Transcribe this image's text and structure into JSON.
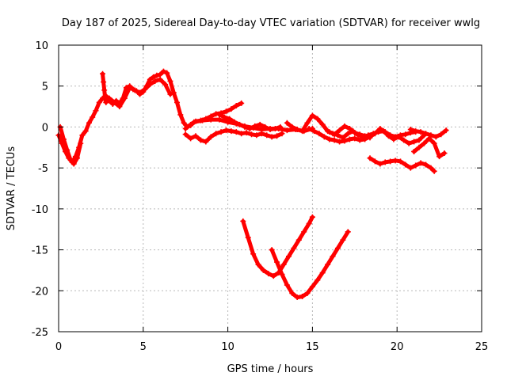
{
  "chart_data": {
    "type": "scatter",
    "title": "Day 187 of 2025, Sidereal Day-to-day VTEC variation (SDTVAR) for receiver wwlg",
    "xlabel": "GPS time / hours",
    "ylabel": "SDTVAR / TECUs",
    "xlim": [
      0,
      25
    ],
    "ylim": [
      -25,
      10
    ],
    "xticks": [
      0,
      5,
      10,
      15,
      20,
      25
    ],
    "yticks": [
      -25,
      -20,
      -15,
      -10,
      -5,
      0,
      5,
      10
    ],
    "grid": true,
    "legend": "none",
    "marker": "plus",
    "color": "#ff0000",
    "series": [
      {
        "x": [
          0.0,
          0.2,
          0.4,
          0.6,
          0.8,
          1.0,
          1.2,
          1.4,
          1.6,
          1.8,
          2.0,
          2.2,
          2.4,
          2.6,
          2.8,
          3.0,
          3.2,
          3.4,
          3.6,
          3.8,
          4.0,
          4.2,
          4.4,
          4.6,
          4.8,
          5.0,
          5.2,
          5.4,
          5.6,
          5.8,
          6.0,
          6.2,
          6.4,
          6.6,
          6.8,
          7.0,
          7.2,
          7.4,
          7.6,
          7.8,
          8.0,
          8.5,
          9.0,
          9.5,
          10.0,
          10.5,
          11.0,
          11.5,
          12.0,
          12.5,
          13.0,
          13.5,
          14.0,
          14.5,
          15.0
        ],
        "y": [
          -1.0,
          -2.0,
          -3.0,
          -3.8,
          -4.3,
          -3.6,
          -2.5,
          -1.0,
          -0.5,
          0.5,
          1.2,
          2.0,
          3.0,
          3.5,
          3.8,
          3.2,
          2.8,
          3.2,
          2.9,
          3.5,
          4.8,
          5.0,
          4.6,
          4.4,
          4.0,
          4.3,
          5.0,
          5.8,
          6.1,
          6.3,
          6.4,
          6.8,
          6.6,
          5.6,
          4.2,
          3.0,
          1.5,
          0.5,
          0.0,
          0.2,
          0.6,
          0.8,
          0.9,
          0.9,
          0.6,
          0.4,
          0.1,
          -0.1,
          -0.3,
          -0.2,
          -0.2,
          -0.4,
          -0.3,
          -0.5,
          -0.2
        ]
      },
      {
        "x": [
          2.6,
          2.65,
          2.7,
          2.75,
          2.8
        ],
        "y": [
          6.5,
          5.5,
          4.5,
          3.5,
          3.0
        ]
      },
      {
        "x": [
          0.1,
          0.3,
          0.5,
          0.7,
          0.9,
          1.1,
          1.3
        ],
        "y": [
          0.0,
          -1.5,
          -2.8,
          -4.0,
          -4.5,
          -3.8,
          -2.0
        ]
      },
      {
        "x": [
          3.0,
          3.3,
          3.6,
          3.9,
          4.2,
          4.5,
          4.8,
          5.1,
          5.4,
          5.7,
          6.0,
          6.3,
          6.6
        ],
        "y": [
          3.5,
          3.0,
          2.5,
          3.5,
          4.8,
          4.5,
          4.2,
          4.6,
          5.2,
          5.6,
          5.8,
          5.2,
          4.0
        ]
      },
      {
        "x": [
          7.5,
          7.8,
          8.1,
          8.4,
          8.7,
          9.0,
          9.3,
          9.6,
          9.9,
          10.2,
          10.5,
          10.8
        ],
        "y": [
          -0.2,
          0.3,
          0.7,
          0.8,
          1.0,
          1.3,
          1.6,
          1.7,
          1.9,
          2.2,
          2.6,
          2.9
        ]
      },
      {
        "x": [
          7.5,
          7.8,
          8.1,
          8.4,
          8.7,
          9.0,
          9.3,
          9.6,
          9.9,
          10.2,
          10.5,
          10.8,
          11.1,
          11.4,
          11.7,
          12.0,
          12.3,
          12.6,
          12.9,
          13.2
        ],
        "y": [
          -0.9,
          -1.4,
          -1.1,
          -1.6,
          -1.8,
          -1.2,
          -0.8,
          -0.6,
          -0.4,
          -0.5,
          -0.6,
          -0.8,
          -0.7,
          -0.9,
          -1.0,
          -0.8,
          -1.0,
          -1.2,
          -1.1,
          -0.8
        ]
      },
      {
        "x": [
          9.5,
          9.8,
          10.1,
          10.4,
          10.7,
          11.0,
          11.3,
          11.6,
          11.9,
          12.2,
          12.5,
          12.8,
          13.1
        ],
        "y": [
          1.5,
          1.2,
          1.0,
          0.6,
          0.3,
          0.0,
          -0.2,
          0.1,
          0.3,
          0.0,
          -0.3,
          -0.2,
          0.0
        ]
      },
      {
        "x": [
          13.5,
          13.8,
          14.1,
          14.4,
          14.7,
          15.0,
          15.3,
          15.6,
          15.9,
          16.2,
          16.5,
          16.8,
          17.1,
          17.4,
          17.7,
          18.0,
          18.3,
          18.6,
          18.9,
          19.2,
          19.5,
          19.8,
          20.1,
          20.4,
          20.7,
          21.0,
          21.3,
          21.6
        ],
        "y": [
          0.5,
          0.0,
          -0.3,
          -0.5,
          0.5,
          1.4,
          1.0,
          0.3,
          -0.5,
          -0.8,
          -1.0,
          -1.3,
          -0.8,
          -0.5,
          -1.0,
          -1.2,
          -1.0,
          -0.8,
          -0.6,
          -0.5,
          -1.1,
          -1.5,
          -1.2,
          -1.6,
          -2.0,
          -1.8,
          -1.6,
          -1.0
        ]
      },
      {
        "x": [
          14.8,
          15.1,
          15.4,
          15.7,
          16.0,
          16.3,
          16.6,
          16.9,
          17.2,
          17.5,
          17.8,
          18.1,
          18.4,
          18.7,
          19.0,
          19.3,
          19.6,
          19.9,
          20.2,
          20.5,
          20.8,
          21.1
        ],
        "y": [
          -0.2,
          -0.5,
          -0.8,
          -1.2,
          -1.5,
          -1.6,
          -1.8,
          -1.7,
          -1.5,
          -1.4,
          -1.6,
          -1.5,
          -1.2,
          -0.8,
          -0.2,
          -0.6,
          -1.0,
          -1.2,
          -1.0,
          -0.9,
          -0.7,
          -0.6
        ]
      },
      {
        "x": [
          16.0,
          16.3,
          16.6,
          16.9,
          17.2,
          17.5,
          17.8,
          18.1,
          18.4
        ],
        "y": [
          -0.6,
          -0.9,
          -0.4,
          0.1,
          -0.2,
          -0.7,
          -0.9,
          -1.1,
          -1.3
        ]
      },
      {
        "x": [
          20.8,
          21.1,
          21.4,
          21.7,
          22.0,
          22.3,
          22.6,
          22.9
        ],
        "y": [
          -0.3,
          -0.5,
          -0.6,
          -0.8,
          -1.0,
          -1.2,
          -0.9,
          -0.4
        ]
      },
      {
        "x": [
          21.0,
          21.3,
          21.6,
          21.9,
          22.2,
          22.5,
          22.8
        ],
        "y": [
          -3.0,
          -2.5,
          -2.0,
          -1.4,
          -2.0,
          -3.6,
          -3.2
        ]
      },
      {
        "x": [
          18.4,
          18.7,
          19.0,
          19.3,
          19.6,
          19.9,
          20.2,
          20.5,
          20.8,
          21.1,
          21.4,
          21.7,
          22.0,
          22.2
        ],
        "y": [
          -3.8,
          -4.2,
          -4.5,
          -4.3,
          -4.2,
          -4.1,
          -4.2,
          -4.6,
          -5.0,
          -4.7,
          -4.4,
          -4.6,
          -5.0,
          -5.4
        ]
      },
      {
        "x": [
          10.9,
          11.2,
          11.5,
          11.8,
          12.1,
          12.4,
          12.7,
          13.0,
          13.3,
          13.6,
          13.9,
          14.2,
          14.5,
          14.8,
          15.0
        ],
        "y": [
          -11.5,
          -13.5,
          -15.5,
          -16.8,
          -17.5,
          -17.9,
          -18.2,
          -17.8,
          -16.8,
          -15.8,
          -14.8,
          -13.8,
          -12.8,
          -11.8,
          -11.0
        ]
      },
      {
        "x": [
          12.6,
          12.9,
          13.2,
          13.5,
          13.8,
          14.1,
          14.4,
          14.7,
          15.0,
          15.3,
          15.6,
          15.9,
          16.2,
          16.5,
          16.8,
          17.1
        ],
        "y": [
          -15.0,
          -16.5,
          -18.0,
          -19.3,
          -20.3,
          -20.8,
          -20.7,
          -20.3,
          -19.5,
          -18.7,
          -17.8,
          -16.8,
          -15.8,
          -14.8,
          -13.8,
          -12.8
        ]
      }
    ]
  }
}
